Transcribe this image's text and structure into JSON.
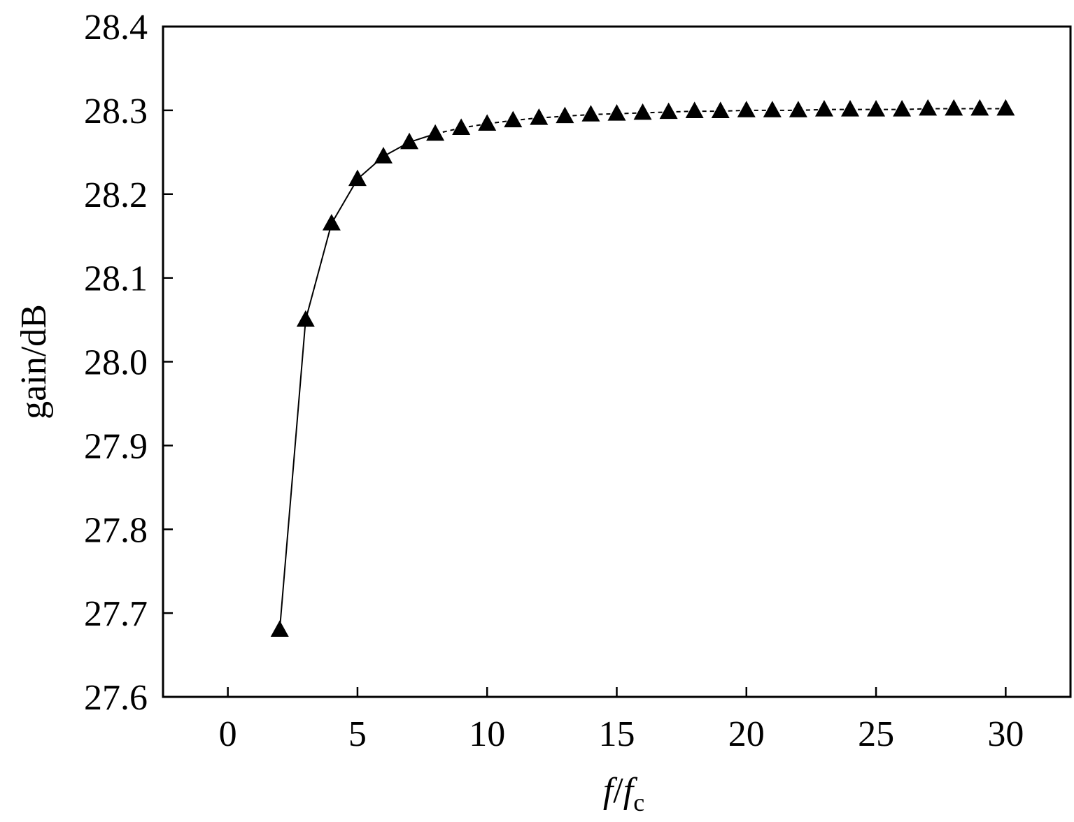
{
  "chart_data": {
    "type": "line",
    "title": "",
    "xlabel": {
      "main": "f",
      "slash": "/",
      "italic2": "f",
      "sub": "c"
    },
    "ylabel": "gain/dB",
    "xlim": [
      -2.5,
      32.5
    ],
    "ylim": [
      27.6,
      28.4
    ],
    "xticks": [
      0,
      5,
      10,
      15,
      20,
      25,
      30
    ],
    "yticks": [
      27.6,
      27.7,
      27.8,
      27.9,
      28.0,
      28.1,
      28.2,
      28.3,
      28.4
    ],
    "ytick_labels": [
      "27.6",
      "27.7",
      "27.8",
      "27.9",
      "28.0",
      "28.1",
      "28.2",
      "28.3",
      "28.4"
    ],
    "marker": "triangle",
    "color": "#000000",
    "series": [
      {
        "x": [
          2,
          3,
          4,
          5,
          6,
          7,
          8,
          9,
          10,
          11,
          12,
          13,
          14,
          15,
          16,
          17,
          18,
          19,
          20,
          21,
          22,
          23,
          24,
          25,
          26,
          27,
          28,
          29,
          30
        ],
        "y": [
          27.68,
          28.05,
          28.165,
          28.218,
          28.245,
          28.262,
          28.272,
          28.279,
          28.284,
          28.288,
          28.291,
          28.293,
          28.295,
          28.296,
          28.297,
          28.298,
          28.299,
          28.299,
          28.3,
          28.3,
          28.3,
          28.301,
          28.301,
          28.301,
          28.301,
          28.302,
          28.302,
          28.302,
          28.302
        ]
      }
    ]
  }
}
